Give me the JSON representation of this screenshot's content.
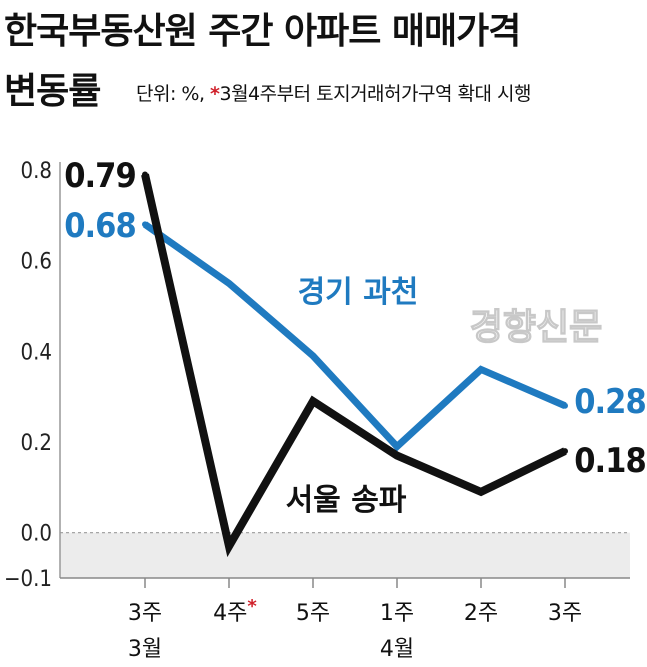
{
  "title": {
    "line1": "한국부동산원 주간 아파트 매매가격",
    "line2": "변동률",
    "unit_prefix": "단위: %, ",
    "note_star": "*",
    "note_text": "3월4주부터 토지거래허가구역 확대 시행"
  },
  "watermark": "경향신문",
  "colors": {
    "gyeonggi": "#1f7ac0",
    "seoul": "#111111",
    "star": "#d0202a",
    "shade": "#ececec"
  },
  "chart_data": {
    "type": "line",
    "categories": [
      "3주",
      "4주",
      "5주",
      "1주",
      "2주",
      "3주"
    ],
    "category_groups": [
      {
        "label": "3월",
        "start": 0,
        "end": 2
      },
      {
        "label": "4월",
        "start": 3,
        "end": 5
      }
    ],
    "category_markers": {
      "4주": "*"
    },
    "yticks": [
      "0.8",
      "0.6",
      "0.4",
      "0.2",
      "0.0",
      "−0.1"
    ],
    "ylim": [
      -0.1,
      0.8
    ],
    "grid": false,
    "series": [
      {
        "name": "경기 과천",
        "color": "#1f7ac0",
        "values": [
          0.68,
          0.55,
          0.39,
          0.19,
          0.36,
          0.28
        ],
        "labels": [
          {
            "index": 0,
            "text": "0.68"
          },
          {
            "index": 5,
            "text": "0.28"
          }
        ]
      },
      {
        "name": "서울 송파",
        "color": "#111111",
        "values": [
          0.79,
          -0.03,
          0.29,
          0.17,
          0.09,
          0.18
        ],
        "labels": [
          {
            "index": 0,
            "text": "0.79"
          },
          {
            "index": 5,
            "text": "0.18"
          }
        ]
      }
    ]
  }
}
